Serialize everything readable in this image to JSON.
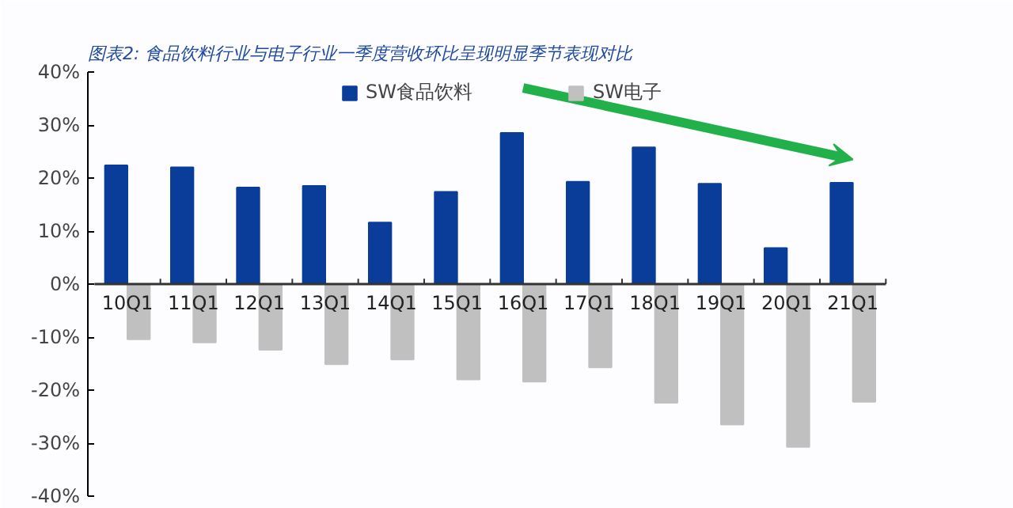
{
  "chart_data": {
    "type": "bar",
    "title": "图表2:  食品饮料行业与电子行业一季度营收环比呈现明显季节表现对比",
    "categories": [
      "10Q1",
      "11Q1",
      "12Q1",
      "13Q1",
      "14Q1",
      "15Q1",
      "16Q1",
      "17Q1",
      "18Q1",
      "19Q1",
      "20Q1",
      "21Q1"
    ],
    "series": [
      {
        "name": "SW食品饮料",
        "color": "#0a3d9a",
        "values": [
          22.4,
          22,
          18.2,
          18.5,
          11.6,
          17.4,
          28.5,
          19.3,
          25.8,
          18.9,
          6.8,
          19.1
        ]
      },
      {
        "name": "SW电子",
        "color": "#c0c0c0",
        "values": [
          -10.4,
          -11,
          -12.4,
          -15.1,
          -14.2,
          -18,
          -18.4,
          -15.7,
          -22.4,
          -26.5,
          -30.7,
          -22.2
        ]
      }
    ],
    "ylim": [
      -40,
      40
    ],
    "yticks": [
      {
        "value": -40,
        "label": "-40%"
      },
      {
        "value": -30,
        "label": "-30%"
      },
      {
        "value": -20,
        "label": "-20%"
      },
      {
        "value": -10,
        "label": "-10%"
      },
      {
        "value": 0,
        "label": "0%"
      },
      {
        "value": 10,
        "label": "10%"
      },
      {
        "value": 20,
        "label": "20%"
      },
      {
        "value": 30,
        "label": "30%"
      },
      {
        "value": 40,
        "label": "40%"
      }
    ],
    "grid": false,
    "legend": "top"
  }
}
